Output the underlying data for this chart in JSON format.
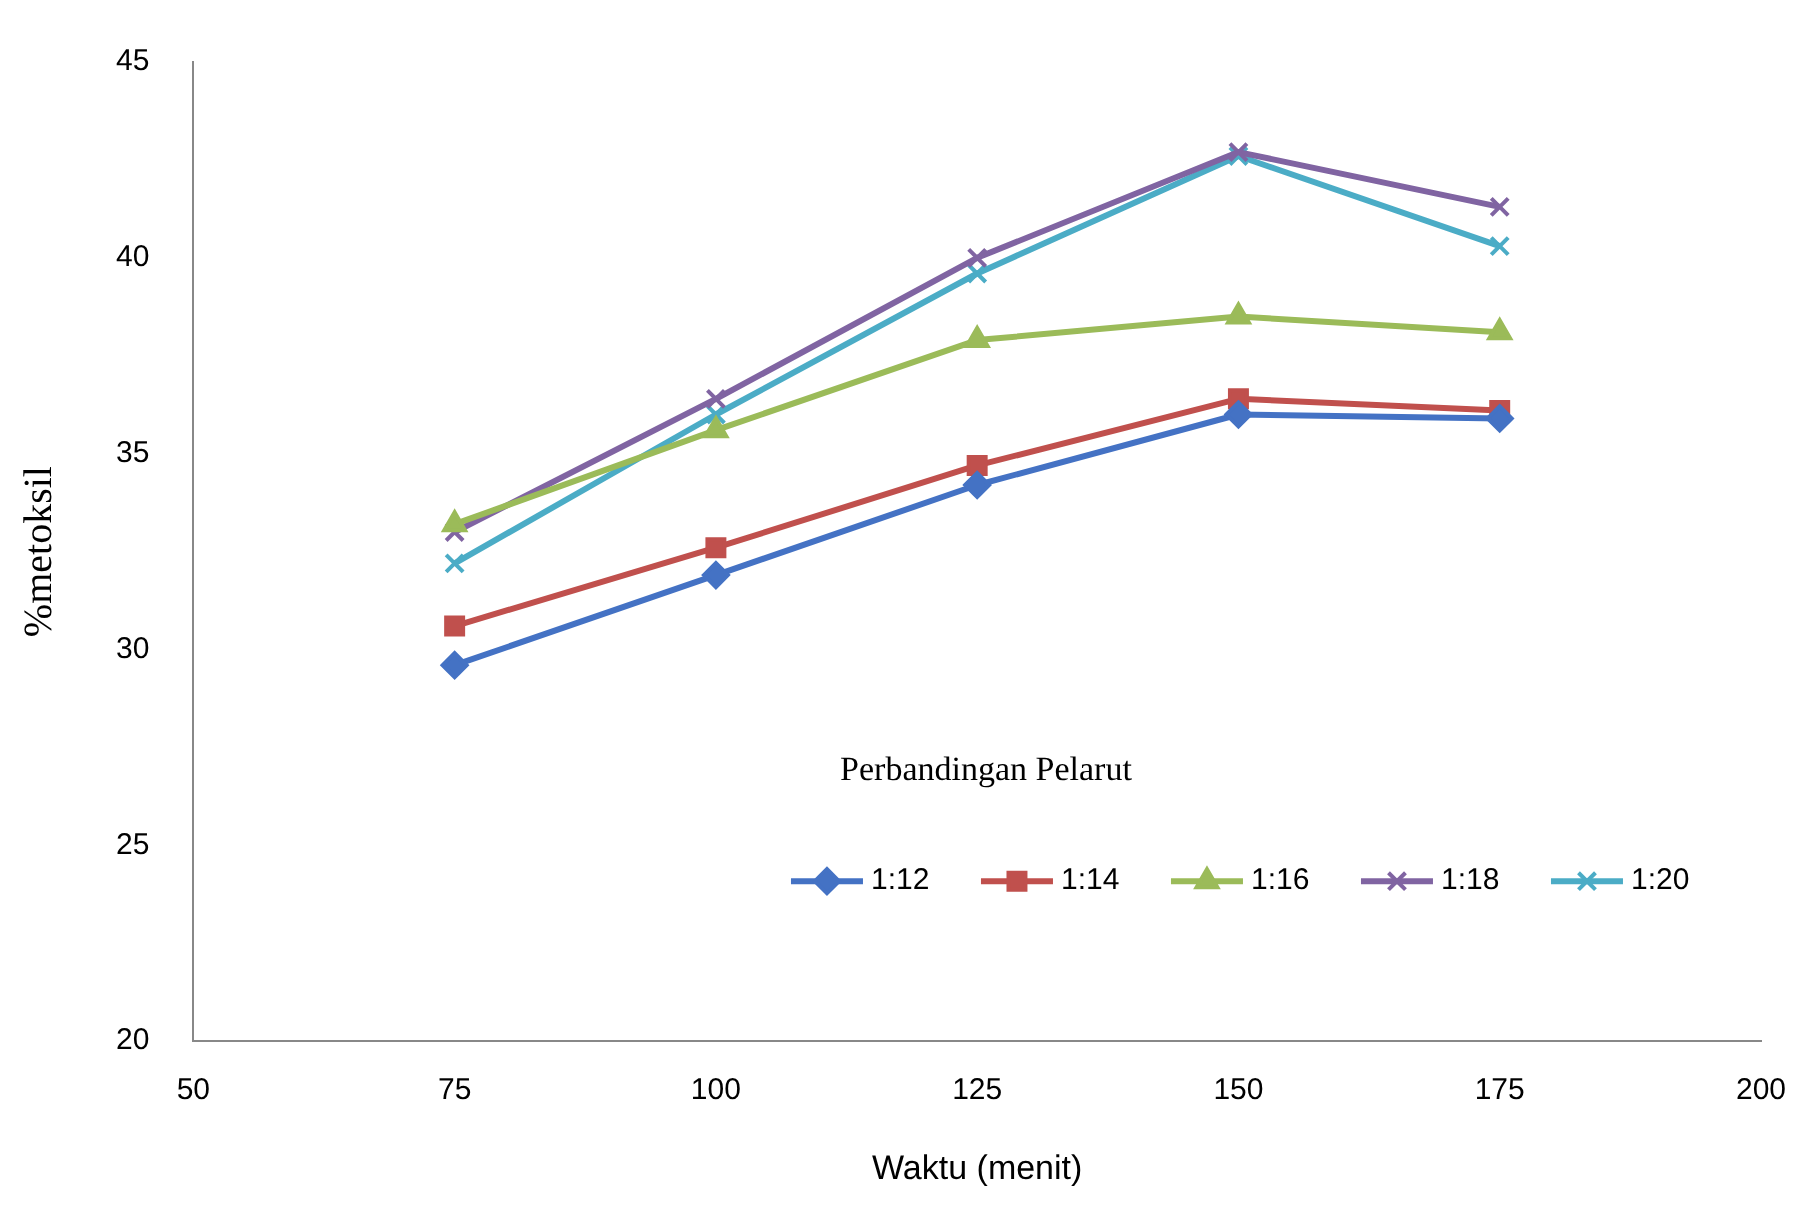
{
  "chart_data": {
    "type": "line",
    "xlabel": "Waktu (menit)",
    "ylabel": "%metoksil",
    "legend_title": "Perbandingan Pelarut",
    "legend": "bottom right",
    "grid": false,
    "x": [
      75,
      100,
      125,
      150,
      175
    ],
    "xlim": [
      50,
      200
    ],
    "xticks": [
      50,
      75,
      100,
      125,
      150,
      175,
      200
    ],
    "ylim": [
      20,
      45
    ],
    "yticks": [
      20,
      25,
      30,
      35,
      40,
      45
    ],
    "series": [
      {
        "name": "1:12",
        "color": "#4472c4",
        "marker": "diamond",
        "values": [
          29.6,
          31.9,
          34.2,
          36.0,
          35.9
        ]
      },
      {
        "name": "1:14",
        "color": "#c0504d",
        "marker": "square",
        "values": [
          30.6,
          32.6,
          34.7,
          36.4,
          36.1
        ]
      },
      {
        "name": "1:16",
        "color": "#9bbb59",
        "marker": "triangle",
        "values": [
          33.2,
          35.6,
          37.9,
          38.5,
          38.1
        ]
      },
      {
        "name": "1:18",
        "color": "#8064a2",
        "marker": "cross",
        "values": [
          33.0,
          36.4,
          40.0,
          42.7,
          41.3
        ]
      },
      {
        "name": "1:20",
        "color": "#4bacc6",
        "marker": "cross",
        "values": [
          32.2,
          36.0,
          39.6,
          42.6,
          40.3
        ]
      }
    ]
  }
}
